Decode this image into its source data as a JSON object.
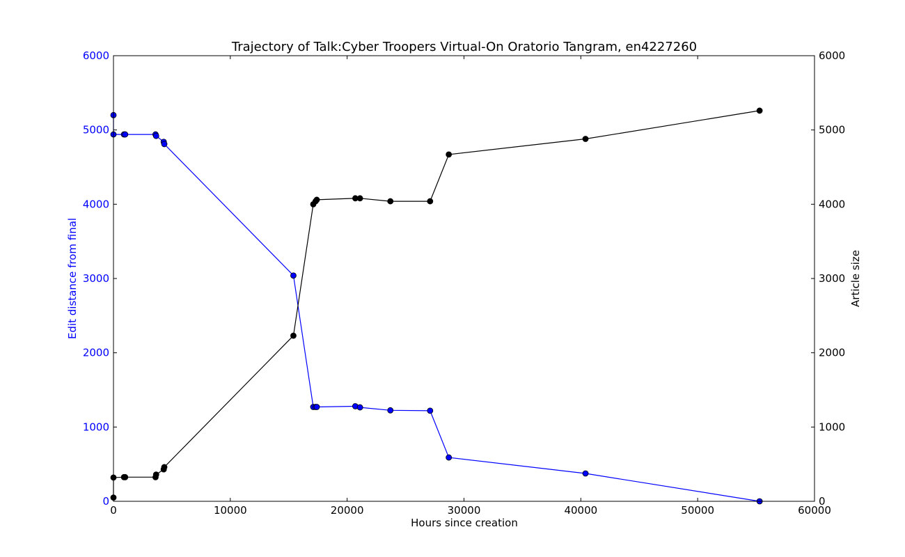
{
  "chart_data": {
    "type": "line",
    "title": "Trajectory of Talk:Cyber Troopers Virtual-On Oratorio Tangram, en4227260",
    "xlabel": "Hours since creation",
    "ylabel_left": "Edit distance from final",
    "ylabel_right": "Article size",
    "xlim": [
      0,
      60000
    ],
    "ylim_left": [
      0,
      6000
    ],
    "ylim_right": [
      0,
      6000
    ],
    "x_ticks": [
      "0",
      "10000",
      "20000",
      "30000",
      "40000",
      "50000",
      "60000"
    ],
    "y_ticks_left": [
      "0",
      "1000",
      "2000",
      "3000",
      "4000",
      "5000",
      "6000"
    ],
    "y_ticks_right": [
      "0",
      "1000",
      "2000",
      "3000",
      "4000",
      "5000",
      "6000"
    ],
    "grid": false,
    "legend": "none",
    "colors": {
      "edit_distance": "#0000ff",
      "article_size": "#000000",
      "left_axis_text": "#0000ff"
    },
    "series": [
      {
        "axis": "left",
        "color": "#0000ff",
        "points": [
          [
            0,
            5200
          ],
          [
            0,
            4940
          ],
          [
            900,
            4940
          ],
          [
            1000,
            4940
          ],
          [
            3600,
            4940
          ],
          [
            3650,
            4920
          ],
          [
            4300,
            4840
          ],
          [
            4350,
            4810
          ],
          [
            15400,
            3040
          ],
          [
            17100,
            1270
          ],
          [
            17300,
            1270
          ],
          [
            17400,
            1270
          ],
          [
            20700,
            1280
          ],
          [
            21100,
            1265
          ],
          [
            23700,
            1225
          ],
          [
            27100,
            1220
          ],
          [
            28700,
            590
          ],
          [
            40400,
            375
          ],
          [
            55300,
            0
          ]
        ]
      },
      {
        "axis": "right",
        "color": "#000000",
        "points": [
          [
            0,
            50
          ],
          [
            0,
            320
          ],
          [
            900,
            325
          ],
          [
            1000,
            325
          ],
          [
            3600,
            325
          ],
          [
            3650,
            360
          ],
          [
            4300,
            430
          ],
          [
            4350,
            460
          ],
          [
            15400,
            2230
          ],
          [
            17100,
            4000
          ],
          [
            17300,
            4040
          ],
          [
            17400,
            4060
          ],
          [
            20700,
            4080
          ],
          [
            21100,
            4080
          ],
          [
            23700,
            4040
          ],
          [
            27100,
            4040
          ],
          [
            28700,
            4670
          ],
          [
            40400,
            4880
          ],
          [
            55300,
            5260
          ]
        ]
      }
    ]
  }
}
